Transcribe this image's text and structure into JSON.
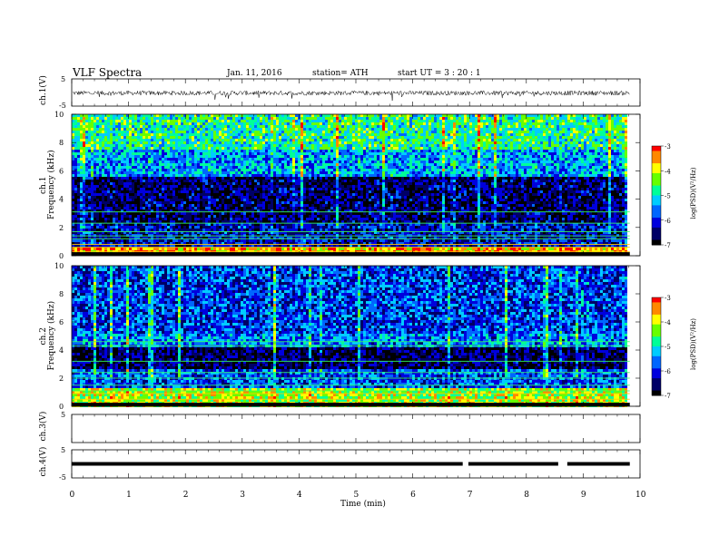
{
  "header": {
    "title": "VLF  Spectra",
    "date": "Jan. 11, 2016",
    "station": "station= ATH",
    "start": "start  UT =   3  : 20 : 1"
  },
  "chart_data": [
    {
      "type": "line",
      "name": "ch1-waveform",
      "ylabel": "ch.1(V)",
      "ylim": [
        -5,
        5
      ],
      "ytick_labels": [
        "5",
        "-5"
      ],
      "xlim": [
        0,
        10
      ],
      "data_extent_min": 9.82,
      "baseline": -0.2,
      "approx_amplitude": 1.2
    },
    {
      "type": "heatmap",
      "name": "ch1-spectrogram",
      "ylabel": "ch.1\nFrequency  (kHz)",
      "ylim": [
        0,
        10
      ],
      "yticks": [
        0,
        2,
        4,
        6,
        8,
        10
      ],
      "xlim": [
        0,
        10
      ],
      "data_extent_min": 9.82,
      "colorbar": {
        "label": "log(PSD)(V²/Hz)",
        "range": [
          -7,
          -3
        ],
        "ticks": [
          "-3",
          "-4",
          "-5",
          "-6",
          "-7"
        ]
      },
      "band_profile": [
        {
          "fmin": 0,
          "fmax": 0.6,
          "level": -3.6
        },
        {
          "fmin": 0.6,
          "fmax": 2.3,
          "level": -6.2
        },
        {
          "fmin": 2.3,
          "fmax": 5.5,
          "level": -6.6
        },
        {
          "fmin": 5.5,
          "fmax": 7.5,
          "level": -5.4
        },
        {
          "fmin": 7.5,
          "fmax": 10,
          "level": -4.8
        }
      ],
      "lines_khz": [
        0.1,
        0.3,
        0.6,
        0.8,
        1.2,
        1.4,
        1.7,
        2.3,
        3.1
      ]
    },
    {
      "type": "heatmap",
      "name": "ch2-spectrogram",
      "ylabel": "ch.2\nFrequency  (kHz)",
      "ylim": [
        0,
        10
      ],
      "yticks": [
        0,
        2,
        4,
        6,
        8,
        10
      ],
      "xlim": [
        0,
        10
      ],
      "data_extent_min": 9.82,
      "colorbar": {
        "label": "log(PSD)(V²/Hz)",
        "range": [
          -7,
          -3
        ],
        "ticks": [
          "-3",
          "-4",
          "-5",
          "-6",
          "-7"
        ]
      },
      "band_profile": [
        {
          "fmin": 0,
          "fmax": 1.2,
          "level": -4.2
        },
        {
          "fmin": 1.2,
          "fmax": 2.6,
          "level": -5.8
        },
        {
          "fmin": 2.6,
          "fmax": 4.2,
          "level": -6.7
        },
        {
          "fmin": 4.2,
          "fmax": 5.2,
          "level": -5.6
        },
        {
          "fmin": 5.2,
          "fmax": 10,
          "level": -5.9
        }
      ],
      "lines_khz": [
        0.2,
        0.5,
        0.9,
        1.1,
        1.5,
        2.0,
        2.4,
        3.2,
        4.3,
        4.6
      ]
    },
    {
      "type": "line",
      "name": "ch3-waveform",
      "ylabel": "ch.3(V)",
      "ylim": [
        -5,
        5
      ],
      "ytick_labels": [
        "5"
      ],
      "xlim": [
        0,
        10
      ]
    },
    {
      "type": "line",
      "name": "ch4-waveform",
      "ylabel": "ch.4(V)",
      "ylim": [
        -5,
        5
      ],
      "ytick_labels": [
        "5",
        "-5"
      ],
      "xlim": [
        0,
        10
      ],
      "data_extent_min": 9.82,
      "value": 0,
      "gaps_min": [
        [
          6.88,
          6.98
        ],
        [
          8.56,
          8.72
        ]
      ]
    }
  ],
  "x_axis": {
    "label": "Time  (min)",
    "ticks": [
      "0",
      "1",
      "2",
      "3",
      "4",
      "5",
      "6",
      "7",
      "8",
      "9",
      "10"
    ]
  },
  "colorscale": [
    "#000000",
    "#000066",
    "#0000dd",
    "#0066ff",
    "#00ccff",
    "#00ff99",
    "#66ff00",
    "#ffff00",
    "#ff8800",
    "#ff0000",
    "#ffffff"
  ]
}
